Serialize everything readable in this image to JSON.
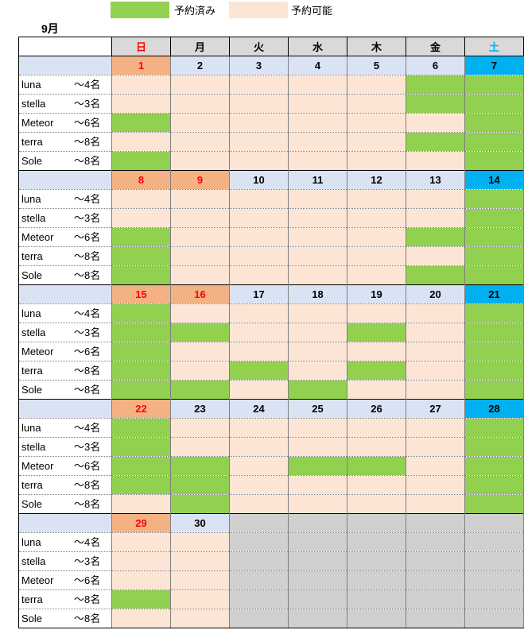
{
  "legend": {
    "booked_label": "予約済み",
    "available_label": "予約可能",
    "booked_color": "#92d050",
    "available_color": "#fde5d6"
  },
  "month_label": "9月",
  "weekdays": [
    "日",
    "月",
    "火",
    "水",
    "木",
    "金",
    "土"
  ],
  "rooms": [
    {
      "name": "luna",
      "cap": "～4名"
    },
    {
      "name": "stella",
      "cap": "～3名"
    },
    {
      "name": "Meteor",
      "cap": "～6名"
    },
    {
      "name": "terra",
      "cap": "～8名"
    },
    {
      "name": "Sole",
      "cap": "～8名"
    }
  ],
  "weeks": [
    {
      "dates": [
        "1",
        "2",
        "3",
        "4",
        "5",
        "6",
        "7"
      ],
      "date_types": [
        "holiday",
        "normal",
        "normal",
        "normal",
        "normal",
        "normal",
        "sat"
      ],
      "status": [
        [
          "avail",
          "avail",
          "avail",
          "avail",
          "avail",
          "booked",
          "booked"
        ],
        [
          "avail",
          "avail",
          "avail",
          "avail",
          "avail",
          "booked",
          "booked"
        ],
        [
          "booked",
          "avail",
          "avail",
          "avail",
          "avail",
          "avail",
          "booked"
        ],
        [
          "avail",
          "avail",
          "avail",
          "avail",
          "avail",
          "booked",
          "booked"
        ],
        [
          "booked",
          "avail",
          "avail",
          "avail",
          "avail",
          "avail",
          "booked"
        ]
      ]
    },
    {
      "dates": [
        "8",
        "9",
        "10",
        "11",
        "12",
        "13",
        "14"
      ],
      "date_types": [
        "holiday",
        "holiday",
        "normal",
        "normal",
        "normal",
        "normal",
        "sat"
      ],
      "status": [
        [
          "avail",
          "avail",
          "avail",
          "avail",
          "avail",
          "avail",
          "booked"
        ],
        [
          "avail",
          "avail",
          "avail",
          "avail",
          "avail",
          "avail",
          "booked"
        ],
        [
          "booked",
          "avail",
          "avail",
          "avail",
          "avail",
          "booked",
          "booked"
        ],
        [
          "booked",
          "avail",
          "avail",
          "avail",
          "avail",
          "avail",
          "booked"
        ],
        [
          "booked",
          "avail",
          "avail",
          "avail",
          "avail",
          "booked",
          "booked"
        ]
      ]
    },
    {
      "dates": [
        "15",
        "16",
        "17",
        "18",
        "19",
        "20",
        "21"
      ],
      "date_types": [
        "holiday",
        "holiday",
        "normal",
        "normal",
        "normal",
        "normal",
        "sat"
      ],
      "status": [
        [
          "booked",
          "avail",
          "avail",
          "avail",
          "avail",
          "avail",
          "booked"
        ],
        [
          "booked",
          "booked",
          "avail",
          "avail",
          "booked",
          "avail",
          "booked"
        ],
        [
          "booked",
          "avail",
          "avail",
          "avail",
          "avail",
          "avail",
          "booked"
        ],
        [
          "booked",
          "avail",
          "booked",
          "avail",
          "booked",
          "avail",
          "booked"
        ],
        [
          "booked",
          "booked",
          "avail",
          "booked",
          "avail",
          "avail",
          "booked"
        ]
      ]
    },
    {
      "dates": [
        "22",
        "23",
        "24",
        "25",
        "26",
        "27",
        "28"
      ],
      "date_types": [
        "holiday",
        "normal",
        "normal",
        "normal",
        "normal",
        "normal",
        "sat"
      ],
      "status": [
        [
          "booked",
          "avail",
          "avail",
          "avail",
          "avail",
          "avail",
          "booked"
        ],
        [
          "booked",
          "avail",
          "avail",
          "avail",
          "avail",
          "avail",
          "booked"
        ],
        [
          "booked",
          "booked",
          "avail",
          "booked",
          "booked",
          "avail",
          "booked"
        ],
        [
          "booked",
          "booked",
          "avail",
          "avail",
          "avail",
          "avail",
          "booked"
        ],
        [
          "avail",
          "booked",
          "avail",
          "avail",
          "avail",
          "avail",
          "booked"
        ]
      ]
    },
    {
      "dates": [
        "29",
        "30",
        "",
        "",
        "",
        "",
        ""
      ],
      "date_types": [
        "holiday",
        "normal",
        "na",
        "na",
        "na",
        "na",
        "na"
      ],
      "status": [
        [
          "avail",
          "avail",
          "na",
          "na",
          "na",
          "na",
          "na"
        ],
        [
          "avail",
          "avail",
          "na",
          "na",
          "na",
          "na",
          "na"
        ],
        [
          "avail",
          "avail",
          "na",
          "na",
          "na",
          "na",
          "na"
        ],
        [
          "booked",
          "avail",
          "na",
          "na",
          "na",
          "na",
          "na"
        ],
        [
          "avail",
          "avail",
          "na",
          "na",
          "na",
          "na",
          "na"
        ]
      ]
    }
  ]
}
